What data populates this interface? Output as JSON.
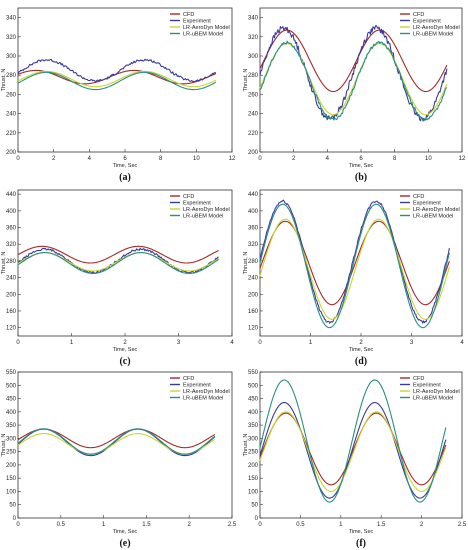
{
  "colors": {
    "cfd": "#a52a2a",
    "experiment": "#3b3b9a",
    "aerodyn": "#c8d630",
    "ubem": "#2a8f82"
  },
  "chart_data": [
    {
      "type": "line",
      "label": "(a)",
      "xlabel": "Time, Sec",
      "ylabel": "Thrust, N",
      "xlim": [
        0,
        12
      ],
      "ylim": [
        200,
        350
      ],
      "xticks": [
        0,
        2,
        4,
        6,
        8,
        10,
        12
      ],
      "yticks": [
        200,
        220,
        240,
        260,
        280,
        300,
        320,
        340
      ],
      "x_end": 11.1,
      "series": [
        {
          "name": "CFD",
          "color": "#a52a2a",
          "mean": 278,
          "amp": 7,
          "period": 5.5,
          "phase": 1.0,
          "noise": 0
        },
        {
          "name": "Experiment",
          "color": "#3b3b9a",
          "mean": 285,
          "amp": 11,
          "period": 5.5,
          "phase": 1.6,
          "noise": 1.2
        },
        {
          "name": "LR-AeroDyn Model",
          "color": "#c8d630",
          "mean": 276,
          "amp": 8,
          "period": 5.5,
          "phase": 1.6,
          "noise": 0
        },
        {
          "name": "LR-uBEM Model",
          "color": "#2a8f82",
          "mean": 274,
          "amp": 9,
          "period": 5.5,
          "phase": 1.6,
          "noise": 0
        }
      ]
    },
    {
      "type": "line",
      "label": "(b)",
      "xlabel": "Time, Sec",
      "ylabel": "Thrust, N",
      "xlim": [
        0,
        12
      ],
      "ylim": [
        200,
        350
      ],
      "xticks": [
        0,
        2,
        4,
        6,
        8,
        10,
        12
      ],
      "yticks": [
        200,
        220,
        240,
        260,
        280,
        300,
        320,
        340
      ],
      "x_end": 11.1,
      "series": [
        {
          "name": "CFD",
          "color": "#a52a2a",
          "mean": 295,
          "amp": 32,
          "period": 5.5,
          "phase": 1.6,
          "noise": 0
        },
        {
          "name": "Experiment",
          "color": "#3b3b9a",
          "mean": 282,
          "amp": 47,
          "period": 5.5,
          "phase": 1.4,
          "noise": 3
        },
        {
          "name": "LR-AeroDyn Model",
          "color": "#c8d630",
          "mean": 276,
          "amp": 37,
          "period": 5.5,
          "phase": 1.6,
          "noise": 0
        },
        {
          "name": "LR-uBEM Model",
          "color": "#2a8f82",
          "mean": 274,
          "amp": 40,
          "period": 5.5,
          "phase": 1.6,
          "noise": 1.5
        }
      ]
    },
    {
      "type": "line",
      "label": "(c)",
      "xlabel": "Time, Sec",
      "ylabel": "Thrust, N",
      "xlim": [
        0,
        4
      ],
      "ylim": [
        100,
        450
      ],
      "xticks": [
        0,
        1,
        2,
        3,
        4
      ],
      "yticks": [
        120,
        160,
        200,
        240,
        280,
        320,
        360,
        400,
        440
      ],
      "x_end": 3.75,
      "series": [
        {
          "name": "CFD",
          "color": "#a52a2a",
          "mean": 295,
          "amp": 20,
          "period": 1.8,
          "phase": 0.45,
          "noise": 0
        },
        {
          "name": "Experiment",
          "color": "#3b3b9a",
          "mean": 280,
          "amp": 28,
          "period": 1.8,
          "phase": 0.5,
          "noise": 2.5
        },
        {
          "name": "LR-AeroDyn Model",
          "color": "#c8d630",
          "mean": 278,
          "amp": 22,
          "period": 1.8,
          "phase": 0.5,
          "noise": 0
        },
        {
          "name": "LR-uBEM Model",
          "color": "#2a8f82",
          "mean": 275,
          "amp": 25,
          "period": 1.8,
          "phase": 0.5,
          "noise": 0
        }
      ]
    },
    {
      "type": "line",
      "label": "(d)",
      "xlabel": "Time, Sec",
      "ylabel": "Thrust, N",
      "xlim": [
        0,
        4
      ],
      "ylim": [
        100,
        450
      ],
      "xticks": [
        0,
        1,
        2,
        3,
        4
      ],
      "yticks": [
        120,
        160,
        200,
        240,
        280,
        320,
        360,
        400,
        440
      ],
      "x_end": 3.75,
      "series": [
        {
          "name": "CFD",
          "color": "#a52a2a",
          "mean": 275,
          "amp": 100,
          "period": 1.85,
          "phase": 0.5,
          "noise": 0
        },
        {
          "name": "Experiment",
          "color": "#3b3b9a",
          "mean": 278,
          "amp": 145,
          "period": 1.85,
          "phase": 0.45,
          "noise": 3
        },
        {
          "name": "LR-AeroDyn Model",
          "color": "#c8d630",
          "mean": 260,
          "amp": 120,
          "period": 1.85,
          "phase": 0.5,
          "noise": 0
        },
        {
          "name": "LR-uBEM Model",
          "color": "#2a8f82",
          "mean": 268,
          "amp": 148,
          "period": 1.85,
          "phase": 0.45,
          "noise": 0
        }
      ]
    },
    {
      "type": "line",
      "label": "(e)",
      "xlabel": "Time, Sec",
      "ylabel": "Thrust, N",
      "xlim": [
        0,
        2.5
      ],
      "ylim": [
        0,
        550
      ],
      "xticks": [
        0.0,
        0.5,
        1.0,
        1.5,
        2.0,
        2.5
      ],
      "yticks": [
        0,
        50,
        100,
        150,
        200,
        250,
        300,
        350,
        400,
        450,
        500,
        550
      ],
      "x_end": 2.3,
      "series": [
        {
          "name": "CFD",
          "color": "#a52a2a",
          "mean": 300,
          "amp": 35,
          "period": 1.1,
          "phase": 0.3,
          "noise": 0
        },
        {
          "name": "Experiment",
          "color": "#3b3b9a",
          "mean": 285,
          "amp": 50,
          "period": 1.1,
          "phase": 0.3,
          "noise": 0
        },
        {
          "name": "LR-AeroDyn Model",
          "color": "#c8d630",
          "mean": 280,
          "amp": 38,
          "period": 1.1,
          "phase": 0.3,
          "noise": 0
        },
        {
          "name": "LR-uBEM Model",
          "color": "#2a8f82",
          "mean": 288,
          "amp": 48,
          "period": 1.1,
          "phase": 0.3,
          "noise": 0
        }
      ]
    },
    {
      "type": "line",
      "label": "(f)",
      "xlabel": "Time, Sec",
      "ylabel": "Thrust, N",
      "xlim": [
        0,
        2.5
      ],
      "ylim": [
        0,
        550
      ],
      "xticks": [
        0.0,
        0.5,
        1.0,
        1.5,
        2.0,
        2.5
      ],
      "yticks": [
        0,
        50,
        100,
        150,
        200,
        250,
        300,
        350,
        400,
        450,
        500,
        550
      ],
      "x_end": 2.3,
      "series": [
        {
          "name": "CFD",
          "color": "#a52a2a",
          "mean": 260,
          "amp": 135,
          "period": 1.12,
          "phase": 0.32,
          "noise": 0
        },
        {
          "name": "Experiment",
          "color": "#3b3b9a",
          "mean": 255,
          "amp": 180,
          "period": 1.12,
          "phase": 0.3,
          "noise": 0
        },
        {
          "name": "LR-AeroDyn Model",
          "color": "#c8d630",
          "mean": 250,
          "amp": 150,
          "period": 1.12,
          "phase": 0.32,
          "noise": 0
        },
        {
          "name": "LR-uBEM Model",
          "color": "#2a8f82",
          "mean": 290,
          "amp": 230,
          "period": 1.12,
          "phase": 0.3,
          "noise": 0
        }
      ]
    }
  ]
}
